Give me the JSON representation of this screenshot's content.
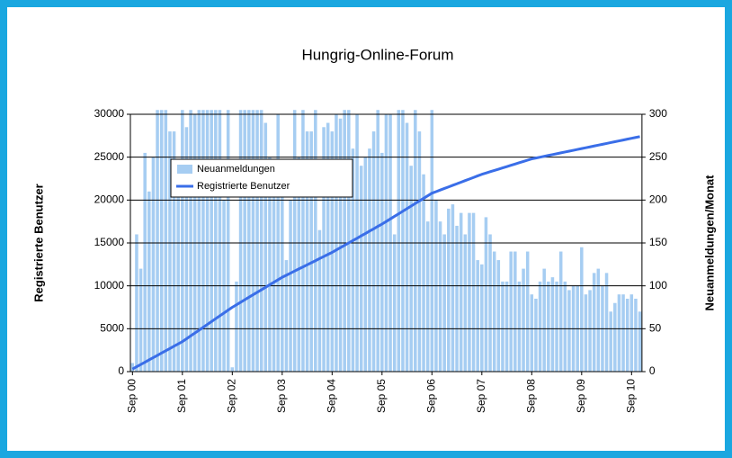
{
  "chart_data": {
    "type": "combo",
    "title": "Hungrig-Online-Forum",
    "ylabel": "Registrierte Benutzer",
    "y2label": "Neuanmeldungen/Monat",
    "categories": [
      "Sep 00",
      null,
      null,
      null,
      null,
      null,
      null,
      null,
      null,
      null,
      null,
      null,
      "Sep 01",
      null,
      null,
      null,
      null,
      null,
      null,
      null,
      null,
      null,
      null,
      null,
      "Sep 02",
      null,
      null,
      null,
      null,
      null,
      null,
      null,
      null,
      null,
      null,
      null,
      "Sep 03",
      null,
      null,
      null,
      null,
      null,
      null,
      null,
      null,
      null,
      null,
      null,
      "Sep 04",
      null,
      null,
      null,
      null,
      null,
      null,
      null,
      null,
      null,
      null,
      null,
      "Sep 05",
      null,
      null,
      null,
      null,
      null,
      null,
      null,
      null,
      null,
      null,
      null,
      "Sep 06",
      null,
      null,
      null,
      null,
      null,
      null,
      null,
      null,
      null,
      null,
      null,
      "Sep 07",
      null,
      null,
      null,
      null,
      null,
      null,
      null,
      null,
      null,
      null,
      null,
      "Sep 08",
      null,
      null,
      null,
      null,
      null,
      null,
      null,
      null,
      null,
      null,
      null,
      "Sep 09",
      null,
      null,
      null,
      null,
      null,
      null,
      null,
      null,
      null,
      null,
      null,
      "Sep 10",
      null,
      null
    ],
    "series": [
      {
        "name": "Neuanmeldungen",
        "type": "bar",
        "axis": "y2",
        "color": "#a6cdf2",
        "values": [
          10,
          160,
          120,
          255,
          210,
          250,
          305,
          305,
          305,
          280,
          280,
          240,
          305,
          285,
          305,
          300,
          305,
          305,
          305,
          305,
          305,
          305,
          200,
          305,
          5,
          105,
          305,
          305,
          305,
          305,
          305,
          305,
          290,
          250,
          205,
          300,
          225,
          130,
          200,
          305,
          250,
          305,
          280,
          280,
          305,
          165,
          285,
          290,
          280,
          300,
          295,
          305,
          305,
          260,
          300,
          240,
          250,
          260,
          280,
          305,
          255,
          300,
          300,
          160,
          305,
          305,
          290,
          240,
          305,
          280,
          230,
          175,
          305,
          200,
          175,
          160,
          190,
          195,
          170,
          185,
          160,
          185,
          185,
          130,
          125,
          180,
          160,
          140,
          130,
          105,
          105,
          140,
          140,
          105,
          120,
          140,
          90,
          85,
          105,
          120,
          105,
          110,
          105,
          140,
          105,
          95,
          100,
          100,
          145,
          90,
          95,
          115,
          120,
          100,
          115,
          70,
          80,
          90,
          90,
          85,
          90,
          85,
          70
        ]
      },
      {
        "name": "Registrierte Benutzer",
        "type": "line",
        "color": "#3a6ee8",
        "values": [
          300,
          570,
          830,
          1100,
          1370,
          1630,
          1900,
          2170,
          2430,
          2700,
          2970,
          3230,
          3500,
          3830,
          4170,
          4500,
          4830,
          5170,
          5500,
          5830,
          6170,
          6500,
          6830,
          7170,
          7500,
          7790,
          8080,
          8380,
          8670,
          8960,
          9250,
          9540,
          9830,
          10130,
          10420,
          10710,
          11000,
          11240,
          11480,
          11730,
          11970,
          12210,
          12450,
          12690,
          12930,
          13180,
          13420,
          13660,
          13900,
          14180,
          14450,
          14730,
          15000,
          15280,
          15550,
          15830,
          16100,
          16380,
          16650,
          16930,
          17200,
          17500,
          17800,
          18100,
          18400,
          18700,
          19000,
          19300,
          19600,
          19900,
          20200,
          20500,
          20800,
          20980,
          21170,
          21350,
          21530,
          21720,
          21900,
          22080,
          22270,
          22450,
          22630,
          22820,
          23000,
          23150,
          23300,
          23450,
          23600,
          23750,
          23900,
          24050,
          24200,
          24350,
          24500,
          24650,
          24800,
          24900,
          25000,
          25100,
          25200,
          25300,
          25400,
          25500,
          25600,
          25700,
          25800,
          25900,
          26000,
          26100,
          26200,
          26300,
          26400,
          26500,
          26600,
          26700,
          26800,
          26900,
          27000,
          27100,
          27200,
          27300,
          27400
        ]
      }
    ],
    "ylim": [
      0,
      30000
    ],
    "yticks": [
      0,
      5000,
      10000,
      15000,
      20000,
      25000,
      30000
    ],
    "y2lim": [
      0,
      300
    ],
    "y2ticks": [
      0,
      50,
      100,
      150,
      200,
      250,
      300
    ],
    "grid": true,
    "legend": "upper left"
  }
}
